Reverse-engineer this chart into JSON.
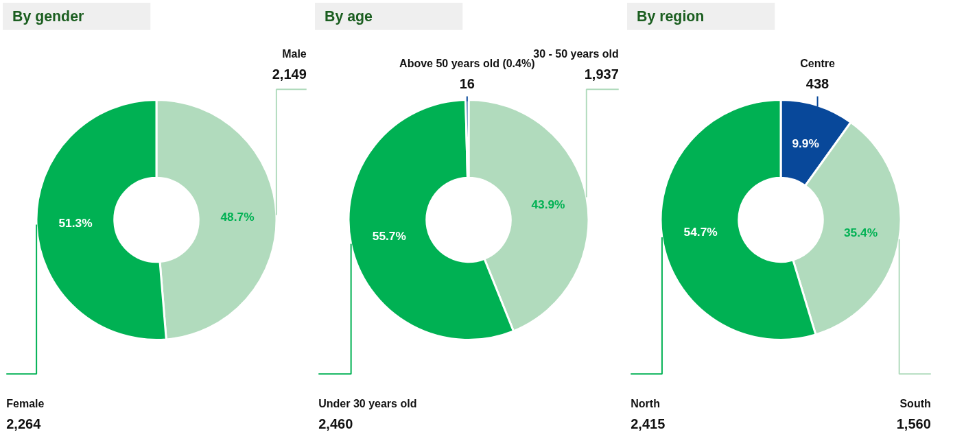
{
  "chart_data": [
    {
      "type": "donut",
      "title": "By gender",
      "categories": [
        "Male",
        "Female"
      ],
      "values": [
        48.7,
        51.3
      ],
      "colors": [
        "#b1dbbd",
        "#00b153"
      ],
      "data_labels": true,
      "value_labels": [
        "48.7%",
        "51.3%"
      ],
      "annotations": [
        {
          "text": "2,149",
          "x": "Male"
        },
        {
          "text": "2,264",
          "x": "Female"
        }
      ]
    },
    {
      "type": "donut",
      "title": "By age",
      "categories": [
        "30 - 50 years old",
        "Under 30 years old",
        "Above 50 years old (0.4%)"
      ],
      "values": [
        43.9,
        55.7,
        0.4
      ],
      "colors": [
        "#b1dbbd",
        "#00b153",
        "#08489a"
      ],
      "data_labels": true,
      "value_labels": [
        "43.9%",
        "55.7%",
        null
      ],
      "annotations": [
        {
          "text": "1,937",
          "x": "30 - 50 years old"
        },
        {
          "text": "2,460",
          "x": "Under 30 years old"
        },
        {
          "text": "16",
          "x": "Above 50 years old (0.4%)"
        }
      ]
    },
    {
      "type": "donut",
      "title": "By region",
      "categories": [
        "Centre",
        "South",
        "North"
      ],
      "values": [
        9.9,
        35.4,
        54.7
      ],
      "colors": [
        "#08489a",
        "#b1dbbd",
        "#00b153"
      ],
      "data_labels": true,
      "value_labels": [
        "9.9%",
        "35.4%",
        "54.7%"
      ],
      "annotations": [
        {
          "text": "438",
          "x": "Centre"
        },
        {
          "text": "1,560",
          "x": "South"
        },
        {
          "text": "2,415",
          "x": "North"
        }
      ]
    }
  ]
}
